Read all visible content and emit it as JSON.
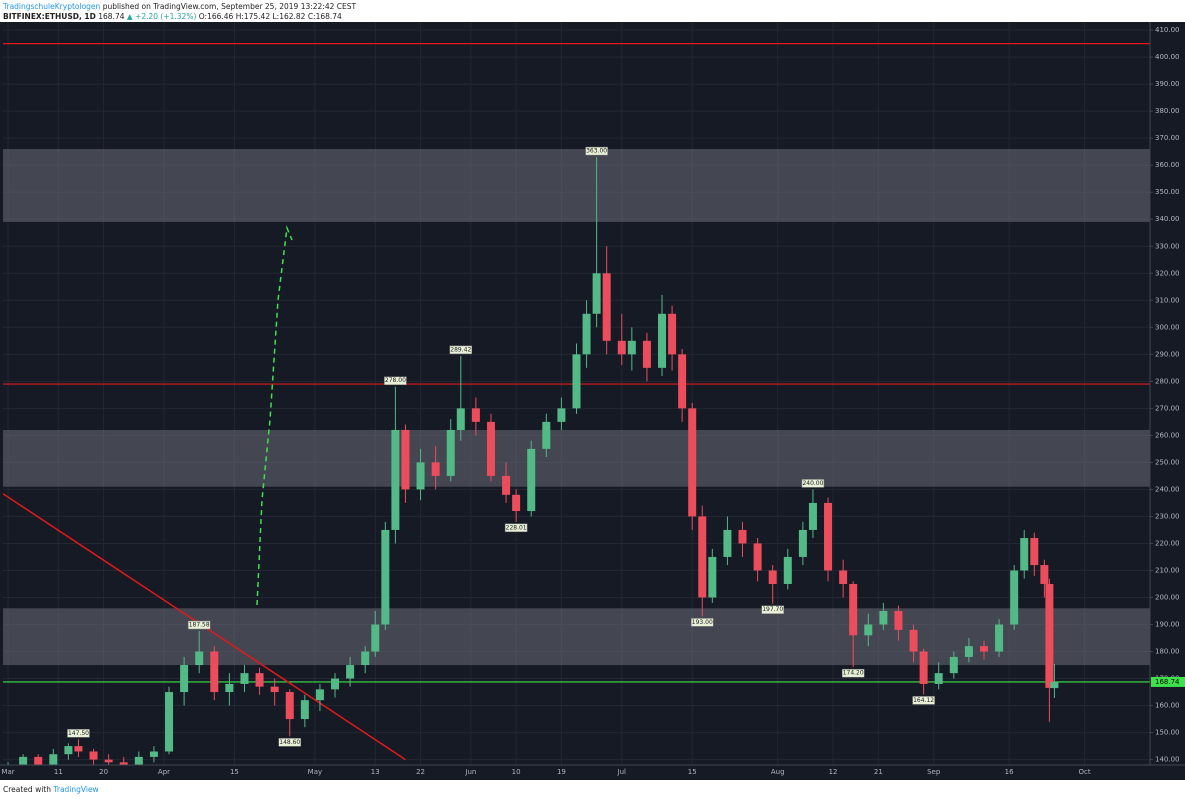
{
  "header": {
    "publisher": "TradingschuleKryptologen",
    "published": "published on TradingView.com, September 25, 2019 13:22:42 CEST",
    "symbol": "BITFINEX:ETHUSD, 1D",
    "last": "168.74",
    "change": "▲ +2.20 (+1.32%)",
    "ohlc": "O:166.46 H:175.42 L:162.82 C:168.74"
  },
  "footer": {
    "text": "Created with",
    "brand": "TradingView"
  },
  "chart_data": {
    "type": "candlestick",
    "background": "#161a25",
    "up_color": "#53b987",
    "down_color": "#eb4d5c",
    "grid": true,
    "x": [
      0,
      3,
      6,
      9,
      12,
      14,
      17,
      20,
      23,
      26,
      29,
      32,
      35,
      38,
      41,
      44,
      47,
      50,
      53,
      56,
      59,
      62,
      65,
      68,
      71,
      73,
      75,
      77,
      79,
      82,
      85,
      88,
      90,
      93,
      96,
      99,
      101,
      104,
      107,
      110,
      113,
      115,
      117,
      119,
      122,
      124,
      127,
      130,
      132,
      134,
      136,
      138,
      140,
      143,
      146,
      149,
      152,
      155,
      158,
      160,
      163,
      166,
      168,
      171,
      174,
      177,
      180,
      182,
      185,
      188,
      191,
      194,
      197,
      200,
      202,
      204,
      206,
      207,
      208
    ],
    "open": [
      136,
      138,
      141,
      138,
      142,
      145,
      143,
      140,
      139,
      138,
      141,
      143,
      165,
      175,
      180,
      165,
      168,
      172,
      167,
      165,
      155,
      162,
      166,
      170,
      175,
      180,
      190,
      225,
      262,
      240,
      250,
      245,
      262,
      270,
      265,
      245,
      238,
      232,
      255,
      265,
      270,
      290,
      305,
      320,
      295,
      290,
      295,
      285,
      305,
      290,
      270,
      230,
      200,
      215,
      225,
      220,
      210,
      205,
      215,
      225,
      235,
      210,
      205,
      186,
      190,
      195,
      188,
      180,
      168,
      172,
      178,
      182,
      180,
      190,
      210,
      222,
      212,
      205,
      166.46
    ],
    "high": [
      139,
      142,
      142,
      144,
      146,
      147.5,
      144,
      142,
      141,
      143,
      145,
      167,
      178,
      187.58,
      182,
      172,
      175,
      174,
      170,
      166,
      164,
      168,
      172,
      178,
      182,
      195,
      228,
      278,
      264,
      255,
      256,
      266,
      289.42,
      274,
      268,
      250,
      240,
      258,
      268,
      274,
      294,
      310,
      363,
      330,
      305,
      300,
      298,
      312,
      308,
      292,
      272,
      234,
      218,
      230,
      228,
      222,
      212,
      218,
      228,
      240,
      237,
      214,
      206,
      194,
      198,
      197,
      190,
      181,
      176,
      180,
      185,
      184,
      192,
      212,
      225,
      224,
      214,
      207,
      175.42
    ],
    "low": [
      134,
      137,
      136,
      137,
      140,
      141,
      138,
      136,
      136,
      137,
      139,
      142,
      160,
      172,
      162,
      160,
      165,
      164,
      160,
      148.6,
      152,
      158,
      163,
      167,
      172,
      178,
      188,
      220,
      235,
      236,
      240,
      243,
      258,
      260,
      243,
      235,
      228.01,
      230,
      252,
      262,
      268,
      285,
      300,
      290,
      286,
      284,
      280,
      282,
      284,
      265,
      225,
      193,
      198,
      212,
      215,
      206,
      197.7,
      203,
      212,
      222,
      206,
      200,
      174.2,
      182,
      188,
      184,
      176,
      164.12,
      166,
      170,
      176,
      177,
      178,
      188,
      207,
      208,
      200,
      154,
      162.82
    ],
    "close": [
      138,
      141,
      138,
      142,
      145,
      143,
      140,
      139,
      138,
      141,
      143,
      165,
      175,
      180,
      165,
      168,
      172,
      167,
      165,
      155,
      162,
      166,
      170,
      175,
      180,
      190,
      225,
      262,
      240,
      250,
      245,
      262,
      270,
      265,
      245,
      238,
      232,
      255,
      265,
      270,
      290,
      305,
      320,
      295,
      290,
      295,
      285,
      305,
      290,
      270,
      230,
      200,
      215,
      225,
      220,
      210,
      205,
      215,
      225,
      235,
      210,
      205,
      186,
      190,
      195,
      188,
      180,
      168,
      172,
      178,
      182,
      180,
      190,
      210,
      222,
      212,
      205,
      166.54,
      168.74
    ],
    "xlim": [
      -1,
      227
    ],
    "xticks": [
      {
        "value": 0,
        "label": "Mar"
      },
      {
        "value": 10,
        "label": "11"
      },
      {
        "value": 19,
        "label": "20"
      },
      {
        "value": 31,
        "label": "Apr"
      },
      {
        "value": 45,
        "label": "15"
      },
      {
        "value": 61,
        "label": "May"
      },
      {
        "value": 73,
        "label": "13"
      },
      {
        "value": 82,
        "label": "22"
      },
      {
        "value": 92,
        "label": "Jun"
      },
      {
        "value": 101,
        "label": "10"
      },
      {
        "value": 110,
        "label": "19"
      },
      {
        "value": 122,
        "label": "Jul"
      },
      {
        "value": 136,
        "label": "15"
      },
      {
        "value": 153,
        "label": "Aug"
      },
      {
        "value": 164,
        "label": "12"
      },
      {
        "value": 173,
        "label": "21"
      },
      {
        "value": 184,
        "label": "Sep"
      },
      {
        "value": 199,
        "label": "16"
      },
      {
        "value": 214,
        "label": "Oct"
      }
    ],
    "ylim": [
      138,
      413
    ],
    "yticks": [
      {
        "value": 140,
        "label": "140.00"
      },
      {
        "value": 150,
        "label": "150.00"
      },
      {
        "value": 160,
        "label": "160.00"
      },
      {
        "value": 170,
        "label": "170.00"
      },
      {
        "value": 180,
        "label": "180.00"
      },
      {
        "value": 190,
        "label": "190.00"
      },
      {
        "value": 200,
        "label": "200.00"
      },
      {
        "value": 210,
        "label": "210.00"
      },
      {
        "value": 220,
        "label": "220.00"
      },
      {
        "value": 230,
        "label": "230.00"
      },
      {
        "value": 240,
        "label": "240.00"
      },
      {
        "value": 250,
        "label": "250.00"
      },
      {
        "value": 260,
        "label": "260.00"
      },
      {
        "value": 270,
        "label": "270.00"
      },
      {
        "value": 280,
        "label": "280.00"
      },
      {
        "value": 290,
        "label": "290.00"
      },
      {
        "value": 300,
        "label": "300.00"
      },
      {
        "value": 310,
        "label": "310.00"
      },
      {
        "value": 320,
        "label": "320.00"
      },
      {
        "value": 330,
        "label": "330.00"
      },
      {
        "value": 340,
        "label": "340.00"
      },
      {
        "value": 350,
        "label": "350.00"
      },
      {
        "value": 360,
        "label": "360.00"
      },
      {
        "value": 370,
        "label": "370.00"
      },
      {
        "value": 380,
        "label": "380.00"
      },
      {
        "value": 390,
        "label": "390.00"
      },
      {
        "value": 400,
        "label": "400.00"
      },
      {
        "value": 410,
        "label": "410.00"
      }
    ],
    "zones": [
      {
        "from": 339,
        "to": 366
      },
      {
        "from": 241,
        "to": 262
      },
      {
        "from": 175,
        "to": 196
      }
    ],
    "zone_color": "#6b6e78",
    "levels": [
      {
        "value": 405,
        "color": "#e0191b"
      },
      {
        "value": 279,
        "color": "#e0191b"
      },
      {
        "value": 168.74,
        "color": "#3ee24a"
      }
    ],
    "trend_line": {
      "x": [
        -1,
        79
      ],
      "values": [
        238.4,
        140
      ],
      "color": "#e0191b"
    },
    "annotations": [
      {
        "x": 14,
        "value": 147.5,
        "label": "147.50"
      },
      {
        "x": 38,
        "value": 187.58,
        "label": "187.58"
      },
      {
        "x": 56,
        "value": 148.6,
        "label": "148.60"
      },
      {
        "x": 77,
        "value": 278,
        "label": "278.00"
      },
      {
        "x": 90,
        "value": 289.42,
        "label": "289.42"
      },
      {
        "x": 101,
        "value": 228.01,
        "label": "228.01"
      },
      {
        "x": 117,
        "value": 363,
        "label": "363.00"
      },
      {
        "x": 138,
        "value": 193,
        "label": "193.00"
      },
      {
        "x": 152,
        "value": 197.7,
        "label": "197.70"
      },
      {
        "x": 160,
        "value": 240,
        "label": "240.00"
      },
      {
        "x": 168,
        "value": 174.2,
        "label": "174.20"
      },
      {
        "x": 182,
        "value": 164.12,
        "label": "164.12"
      }
    ],
    "last_price": {
      "value": 168.74,
      "label": "168.74",
      "color": "#3ee24a"
    }
  }
}
